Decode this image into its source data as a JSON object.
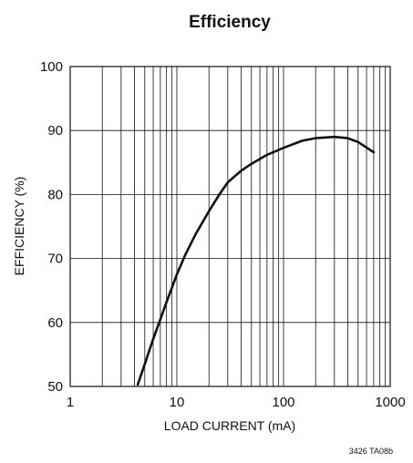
{
  "chart_data": {
    "type": "line",
    "title": "Efficiency",
    "xlabel": "LOAD CURRENT (mA)",
    "ylabel": "EFFICIENCY (%)",
    "x_scale": "log",
    "xlim": [
      1,
      1000
    ],
    "ylim": [
      50,
      100
    ],
    "x_ticks": [
      1,
      10,
      100,
      1000
    ],
    "x_tick_labels": [
      "1",
      "10",
      "100",
      "1000"
    ],
    "y_ticks": [
      50,
      60,
      70,
      80,
      90,
      100
    ],
    "y_tick_labels": [
      "50",
      "60",
      "70",
      "80",
      "90",
      "100"
    ],
    "grid": true,
    "series": [
      {
        "x": [
          4.3,
          5,
          6,
          7,
          8,
          10,
          12,
          15,
          20,
          25,
          30,
          40,
          50,
          70,
          100,
          150,
          200,
          300,
          400,
          500,
          700
        ],
        "y": [
          50.3,
          53.5,
          57.4,
          60.5,
          63.2,
          67.5,
          70.6,
          73.8,
          77.4,
          80.0,
          81.9,
          83.7,
          84.8,
          86.2,
          87.3,
          88.4,
          88.8,
          89.0,
          88.8,
          88.2,
          86.6
        ]
      }
    ],
    "figure_code": "3426 TA08b"
  }
}
